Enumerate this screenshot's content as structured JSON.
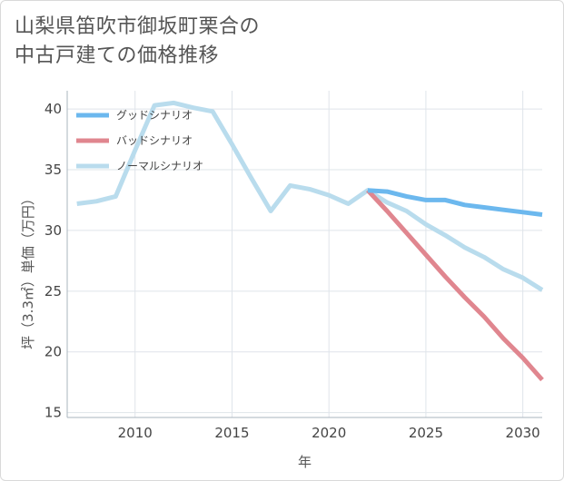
{
  "title": {
    "line1": "山梨県笛吹市御坂町栗合の",
    "line2": "中古戸建ての価格推移"
  },
  "colors": {
    "good": "#6cb8ee",
    "bad": "#e0868f",
    "normal": "#b9dced",
    "grid": "#dfe4ea",
    "axis": "#aab4be"
  },
  "chart_data": {
    "type": "line",
    "xlabel": "年",
    "ylabel": "坪（3.3㎡）単価（万円）",
    "xlim": [
      2006.5,
      2031
    ],
    "ylim": [
      14.6,
      41.5
    ],
    "xticks": [
      2010,
      2015,
      2020,
      2025,
      2030
    ],
    "yticks": [
      15,
      20,
      25,
      30,
      35,
      40
    ],
    "legend_position": "top-left",
    "series": [
      {
        "name": "グッドシナリオ",
        "key": "good",
        "x": [
          2022,
          2023,
          2024,
          2025,
          2026,
          2027,
          2028,
          2029,
          2030,
          2031
        ],
        "y": [
          33.3,
          33.2,
          32.8,
          32.5,
          32.5,
          32.1,
          31.9,
          31.7,
          31.5,
          31.3
        ]
      },
      {
        "name": "バッドシナリオ",
        "key": "bad",
        "x": [
          2022,
          2023,
          2024,
          2025,
          2026,
          2027,
          2028,
          2029,
          2030,
          2031
        ],
        "y": [
          33.3,
          31.6,
          29.8,
          28.0,
          26.2,
          24.5,
          22.9,
          21.1,
          19.5,
          17.7
        ]
      },
      {
        "name": "ノーマルシナリオ",
        "key": "normal",
        "x": [
          2007,
          2008,
          2009,
          2010,
          2011,
          2012,
          2013,
          2014,
          2015,
          2016,
          2017,
          2018,
          2019,
          2020,
          2021,
          2022,
          2023,
          2024,
          2025,
          2026,
          2027,
          2028,
          2029,
          2030,
          2031
        ],
        "y": [
          32.2,
          32.4,
          32.8,
          36.6,
          40.3,
          40.5,
          40.1,
          39.8,
          37.1,
          34.3,
          31.6,
          33.7,
          33.4,
          32.9,
          32.2,
          33.3,
          32.3,
          31.6,
          30.5,
          29.6,
          28.6,
          27.8,
          26.8,
          26.1,
          25.1
        ]
      }
    ]
  }
}
